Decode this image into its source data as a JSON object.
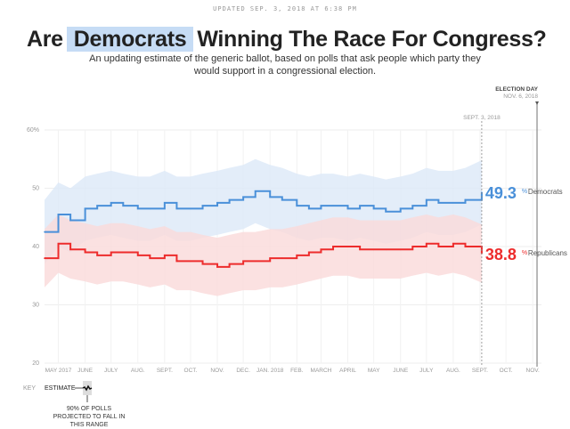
{
  "header": {
    "updated": "UPDATED SEP. 3, 2018 AT 6:38 PM",
    "title_pre": "Are",
    "title_party": "Democrats",
    "title_post": "Winning The Race For Congress?",
    "subtitle": "An updating estimate of the generic ballot, based on polls that ask people which party they would support in a congressional election."
  },
  "chart_data": {
    "type": "line",
    "ylim": [
      20,
      60
    ],
    "yticks": [
      "20",
      "30",
      "40",
      "50",
      "60%"
    ],
    "ytick_values": [
      20,
      30,
      40,
      50,
      60
    ],
    "xlim": [
      "2017-04-15",
      "2018-11-06"
    ],
    "xticks": [
      {
        "label": "MAY 2017",
        "date": "2017-05-01"
      },
      {
        "label": "JUNE",
        "date": "2017-06-01"
      },
      {
        "label": "JULY",
        "date": "2017-07-01"
      },
      {
        "label": "AUG.",
        "date": "2017-08-01"
      },
      {
        "label": "SEPT.",
        "date": "2017-09-01"
      },
      {
        "label": "OCT.",
        "date": "2017-10-01"
      },
      {
        "label": "NOV.",
        "date": "2017-11-01"
      },
      {
        "label": "DEC.",
        "date": "2017-12-01"
      },
      {
        "label": "JAN. 2018",
        "date": "2018-01-01"
      },
      {
        "label": "FEB.",
        "date": "2018-02-01"
      },
      {
        "label": "MARCH",
        "date": "2018-03-01"
      },
      {
        "label": "APRIL",
        "date": "2018-04-01"
      },
      {
        "label": "MAY",
        "date": "2018-05-01"
      },
      {
        "label": "JUNE",
        "date": "2018-06-01"
      },
      {
        "label": "JULY",
        "date": "2018-07-01"
      },
      {
        "label": "AUG.",
        "date": "2018-08-01"
      },
      {
        "label": "SEPT.",
        "date": "2018-09-01"
      },
      {
        "label": "OCT.",
        "date": "2018-10-01"
      },
      {
        "label": "NOV.",
        "date": "2018-11-01"
      }
    ],
    "grid": true,
    "markers": [
      {
        "label": "SEPT. 3, 2018",
        "date": "2018-09-03",
        "style": "dashed"
      },
      {
        "label": "ELECTION DAY",
        "sublabel": "NOV. 6, 2018",
        "date": "2018-11-06",
        "style": "solid"
      }
    ],
    "x": [
      "2017-04-15",
      "2017-05-01",
      "2017-05-15",
      "2017-06-01",
      "2017-06-15",
      "2017-07-01",
      "2017-07-15",
      "2017-08-01",
      "2017-08-15",
      "2017-09-01",
      "2017-09-15",
      "2017-10-01",
      "2017-10-15",
      "2017-11-01",
      "2017-11-15",
      "2017-12-01",
      "2017-12-15",
      "2018-01-01",
      "2018-01-15",
      "2018-02-01",
      "2018-02-15",
      "2018-03-01",
      "2018-03-15",
      "2018-04-01",
      "2018-04-15",
      "2018-05-01",
      "2018-05-15",
      "2018-06-01",
      "2018-06-15",
      "2018-07-01",
      "2018-07-15",
      "2018-08-01",
      "2018-08-15",
      "2018-09-03"
    ],
    "series": [
      {
        "name": "Democrats",
        "color": "#4a90d9",
        "band_color": "#dce8f8",
        "values": [
          42.5,
          45.5,
          44.5,
          46.5,
          47,
          47.5,
          47,
          46.5,
          46.5,
          47.5,
          46.5,
          46.5,
          47,
          47.5,
          48,
          48.5,
          49.5,
          48.5,
          48,
          47,
          46.5,
          47,
          47,
          46.5,
          47,
          46.5,
          46,
          46.5,
          47,
          48,
          47.5,
          47.5,
          48,
          49.3
        ],
        "band_half_width": 5.5,
        "final_label": "49.3"
      },
      {
        "name": "Republicans",
        "color": "#ed2c2c",
        "band_color": "#fadada",
        "values": [
          38,
          40.5,
          39.5,
          39,
          38.5,
          39,
          39,
          38.5,
          38,
          38.5,
          37.5,
          37.5,
          37,
          36.5,
          37,
          37.5,
          37.5,
          38,
          38,
          38.5,
          39,
          39.5,
          40,
          40,
          39.5,
          39.5,
          39.5,
          39.5,
          40,
          40.5,
          40,
          40.5,
          40,
          38.8
        ],
        "band_half_width": 5,
        "final_label": "38.8"
      }
    ]
  },
  "key": {
    "label": "KEY",
    "estimate": "ESTIMATE",
    "note": "90% OF POLLS PROJECTED TO FALL IN THIS RANGE"
  }
}
